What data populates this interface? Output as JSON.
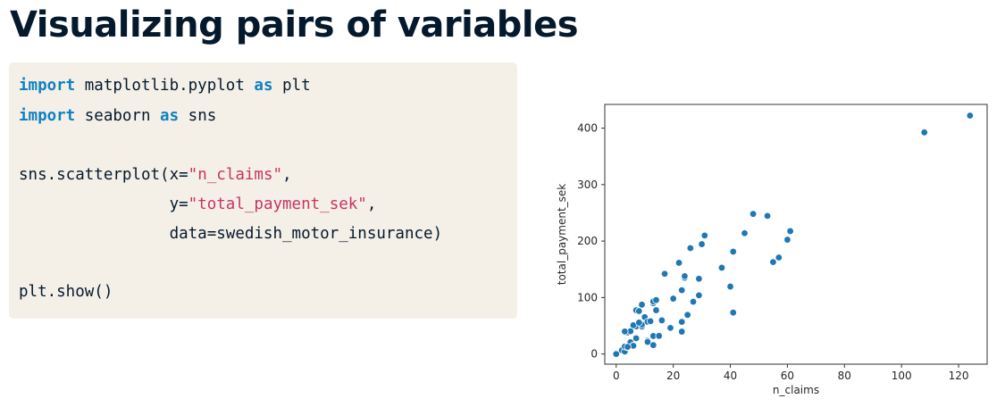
{
  "slide": {
    "title": "Visualizing pairs of variables"
  },
  "code": {
    "lines": [
      [
        {
          "t": "import",
          "c": "kw"
        },
        {
          "t": " matplotlib.pyplot ",
          "c": ""
        },
        {
          "t": "as",
          "c": "kw"
        },
        {
          "t": " plt",
          "c": ""
        }
      ],
      [
        {
          "t": "import",
          "c": "kw"
        },
        {
          "t": " seaborn ",
          "c": ""
        },
        {
          "t": "as",
          "c": "kw"
        },
        {
          "t": " sns",
          "c": ""
        }
      ],
      [
        {
          "t": "sns.scatterplot(x=",
          "c": ""
        },
        {
          "t": "\"n_claims\"",
          "c": "str"
        },
        {
          "t": ",",
          "c": ""
        }
      ],
      [
        {
          "t": "                y=",
          "c": ""
        },
        {
          "t": "\"total_payment_sek\"",
          "c": "str"
        },
        {
          "t": ",",
          "c": ""
        }
      ],
      [
        {
          "t": "                data=swedish_motor_insurance)",
          "c": ""
        }
      ],
      [
        {
          "t": "plt.show()",
          "c": ""
        }
      ]
    ]
  },
  "chart_data": {
    "type": "scatter",
    "xlabel": "n_claims",
    "ylabel": "total_payment_sek",
    "xticks": [
      0,
      20,
      40,
      60,
      80,
      100,
      120
    ],
    "yticks": [
      0,
      100,
      200,
      300,
      400
    ],
    "xlim": [
      -4,
      130
    ],
    "ylim": [
      -18,
      442
    ],
    "point_color": "#1f77b4",
    "points": [
      [
        108,
        392.5
      ],
      [
        19,
        46.2
      ],
      [
        13,
        15.7
      ],
      [
        124,
        422.2
      ],
      [
        40,
        119.4
      ],
      [
        57,
        170.9
      ],
      [
        23,
        56.9
      ],
      [
        14,
        77.5
      ],
      [
        45,
        214.0
      ],
      [
        10,
        65.3
      ],
      [
        5,
        20.9
      ],
      [
        48,
        248.1
      ],
      [
        11,
        23.5
      ],
      [
        23,
        39.6
      ],
      [
        7,
        48.8
      ],
      [
        2,
        6.6
      ],
      [
        24,
        134.9
      ],
      [
        6,
        50.9
      ],
      [
        3,
        4.4
      ],
      [
        23,
        113.0
      ],
      [
        6,
        14.8
      ],
      [
        9,
        48.7
      ],
      [
        9,
        52.1
      ],
      [
        3,
        13.2
      ],
      [
        29,
        103.9
      ],
      [
        7,
        77.5
      ],
      [
        4,
        11.8
      ],
      [
        20,
        98.1
      ],
      [
        7,
        27.9
      ],
      [
        4,
        38.1
      ],
      [
        0,
        0.0
      ],
      [
        25,
        69.2
      ],
      [
        6,
        14.6
      ],
      [
        5,
        40.3
      ],
      [
        22,
        161.5
      ],
      [
        11,
        57.2
      ],
      [
        61,
        217.6
      ],
      [
        12,
        58.1
      ],
      [
        4,
        12.6
      ],
      [
        16,
        59.6
      ],
      [
        13,
        89.9
      ],
      [
        60,
        202.4
      ],
      [
        41,
        181.3
      ],
      [
        37,
        152.8
      ],
      [
        55,
        162.8
      ],
      [
        41,
        73.4
      ],
      [
        11,
        21.3
      ],
      [
        27,
        92.6
      ],
      [
        8,
        76.1
      ],
      [
        3,
        39.9
      ],
      [
        17,
        142.1
      ],
      [
        13,
        93.0
      ],
      [
        13,
        31.9
      ],
      [
        15,
        32.1
      ],
      [
        8,
        55.6
      ],
      [
        29,
        133.3
      ],
      [
        30,
        194.5
      ],
      [
        24,
        137.9
      ],
      [
        9,
        87.4
      ],
      [
        31,
        209.8
      ],
      [
        14,
        95.5
      ],
      [
        53,
        244.6
      ],
      [
        26,
        187.5
      ]
    ]
  }
}
